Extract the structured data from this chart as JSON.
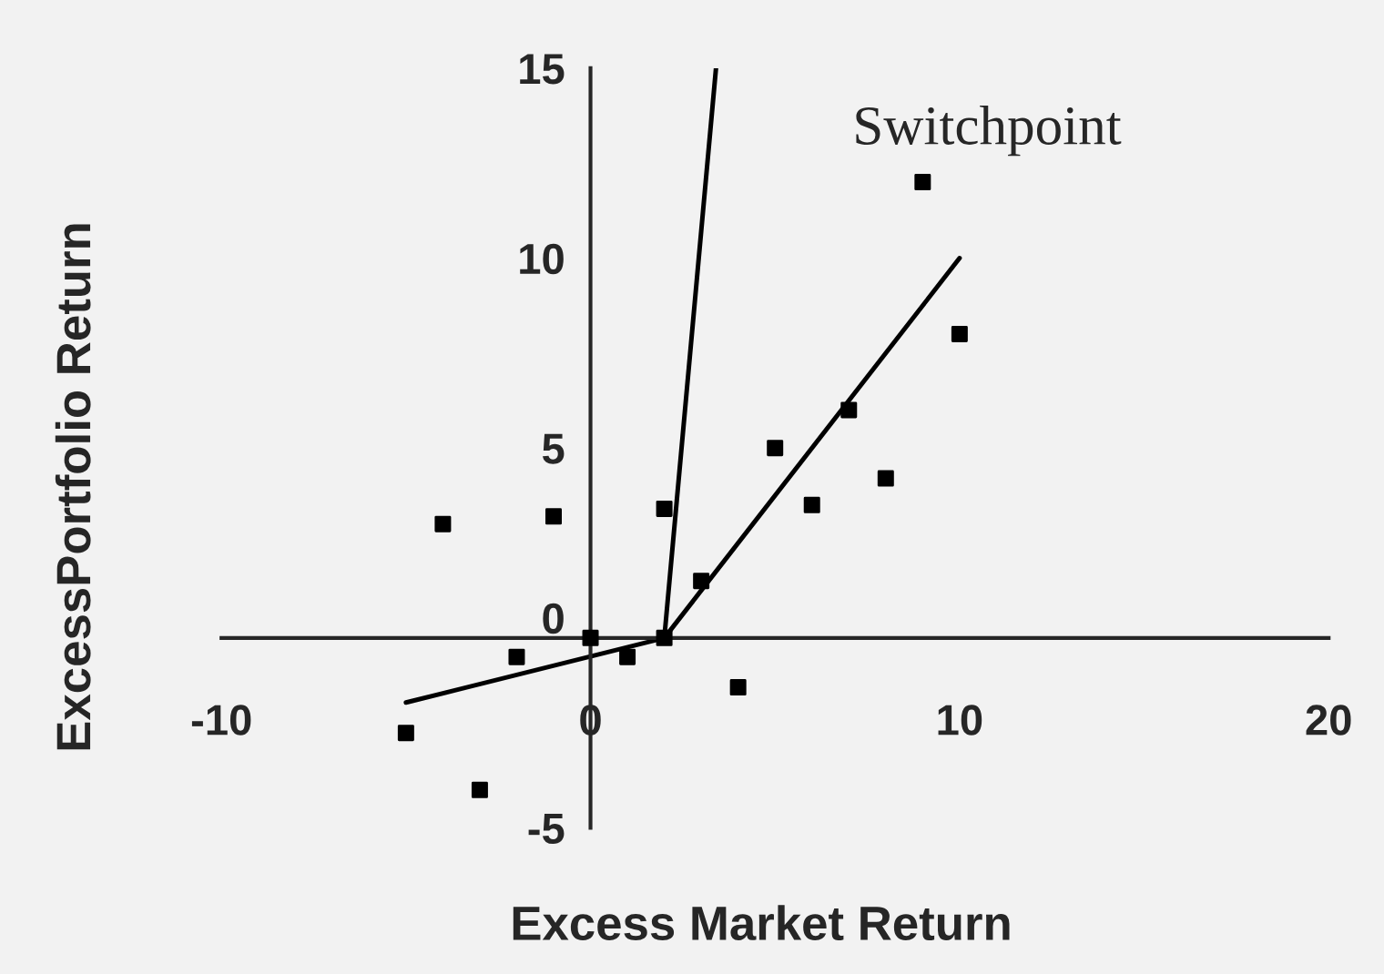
{
  "chart_data": {
    "type": "scatter",
    "xlabel": "Excess Market Return",
    "ylabel": "ExcessPortfolio Return",
    "xlim": [
      -10,
      20
    ],
    "ylim": [
      -5,
      15
    ],
    "xticks": [
      -10,
      0,
      10,
      20
    ],
    "yticks": [
      -5,
      0,
      5,
      10,
      15
    ],
    "grid": false,
    "legend": false,
    "marker": "square",
    "annotations": [
      "Switchpoint"
    ],
    "series": [
      {
        "color": "#000000",
        "x": [
          -5,
          -4,
          -3,
          -2,
          -1,
          0,
          1,
          2,
          2,
          3,
          4,
          5,
          6,
          7,
          8,
          9,
          10
        ],
        "values": [
          -2.5,
          3,
          -4,
          -0.5,
          3.2,
          0,
          -0.5,
          3.4,
          0,
          1.5,
          -1.3,
          5,
          3.5,
          6,
          4.2,
          12,
          8
        ]
      },
      {
        "type": "line",
        "color": "#000000",
        "marker": "none",
        "x": [
          -5,
          2,
          10
        ],
        "values": [
          -1.7,
          0,
          10
        ]
      },
      {
        "type": "line",
        "color": "#000000",
        "marker": "none",
        "x": [
          2,
          3.4
        ],
        "values": [
          0,
          15
        ]
      }
    ]
  }
}
